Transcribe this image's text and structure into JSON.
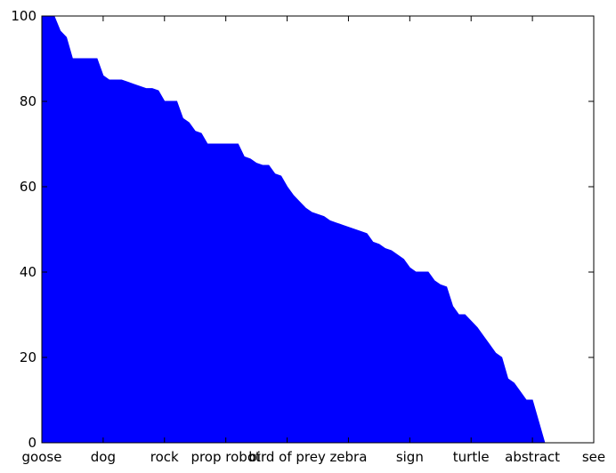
{
  "chart_data": {
    "type": "area",
    "title": "",
    "xlabel": "",
    "ylabel": "",
    "ylim": [
      0,
      100
    ],
    "yticks": [
      0,
      20,
      40,
      60,
      80,
      100
    ],
    "xticks": [
      {
        "label": "goose",
        "index": 0
      },
      {
        "label": "dog",
        "index": 10
      },
      {
        "label": "rock",
        "index": 20
      },
      {
        "label": "prop robot",
        "index": 30
      },
      {
        "label": "bird of prey",
        "index": 40
      },
      {
        "label": "zebra",
        "index": 50
      },
      {
        "label": "sign",
        "index": 60
      },
      {
        "label": "turtle",
        "index": 70
      },
      {
        "label": "abstract",
        "index": 80
      },
      {
        "label": "see",
        "index": 90
      }
    ],
    "x_count": 91,
    "series": [
      {
        "color": "#0000ff",
        "values": [
          100,
          100,
          100,
          96.5,
          95,
          90,
          90,
          90,
          90,
          90,
          86,
          85,
          85,
          85,
          84.5,
          84,
          83.5,
          83,
          83,
          82.5,
          80,
          80,
          80,
          76,
          75,
          73,
          72.5,
          70,
          70,
          70,
          70,
          70,
          70,
          67,
          66.5,
          65.5,
          65,
          65,
          63,
          62.5,
          60,
          58,
          56.5,
          55,
          54,
          53.5,
          53,
          52,
          51.5,
          51,
          50.5,
          50,
          49.5,
          49,
          47,
          46.5,
          45.5,
          45,
          44,
          43,
          41,
          40,
          40,
          40,
          38,
          37,
          36.5,
          32,
          30,
          30,
          28.5,
          27,
          25,
          23,
          21,
          20,
          15,
          14,
          12,
          10,
          10,
          5,
          0,
          0,
          0,
          0,
          0,
          0,
          0,
          0,
          0
        ]
      }
    ],
    "fill_color": "#0000ff",
    "grid": false
  }
}
